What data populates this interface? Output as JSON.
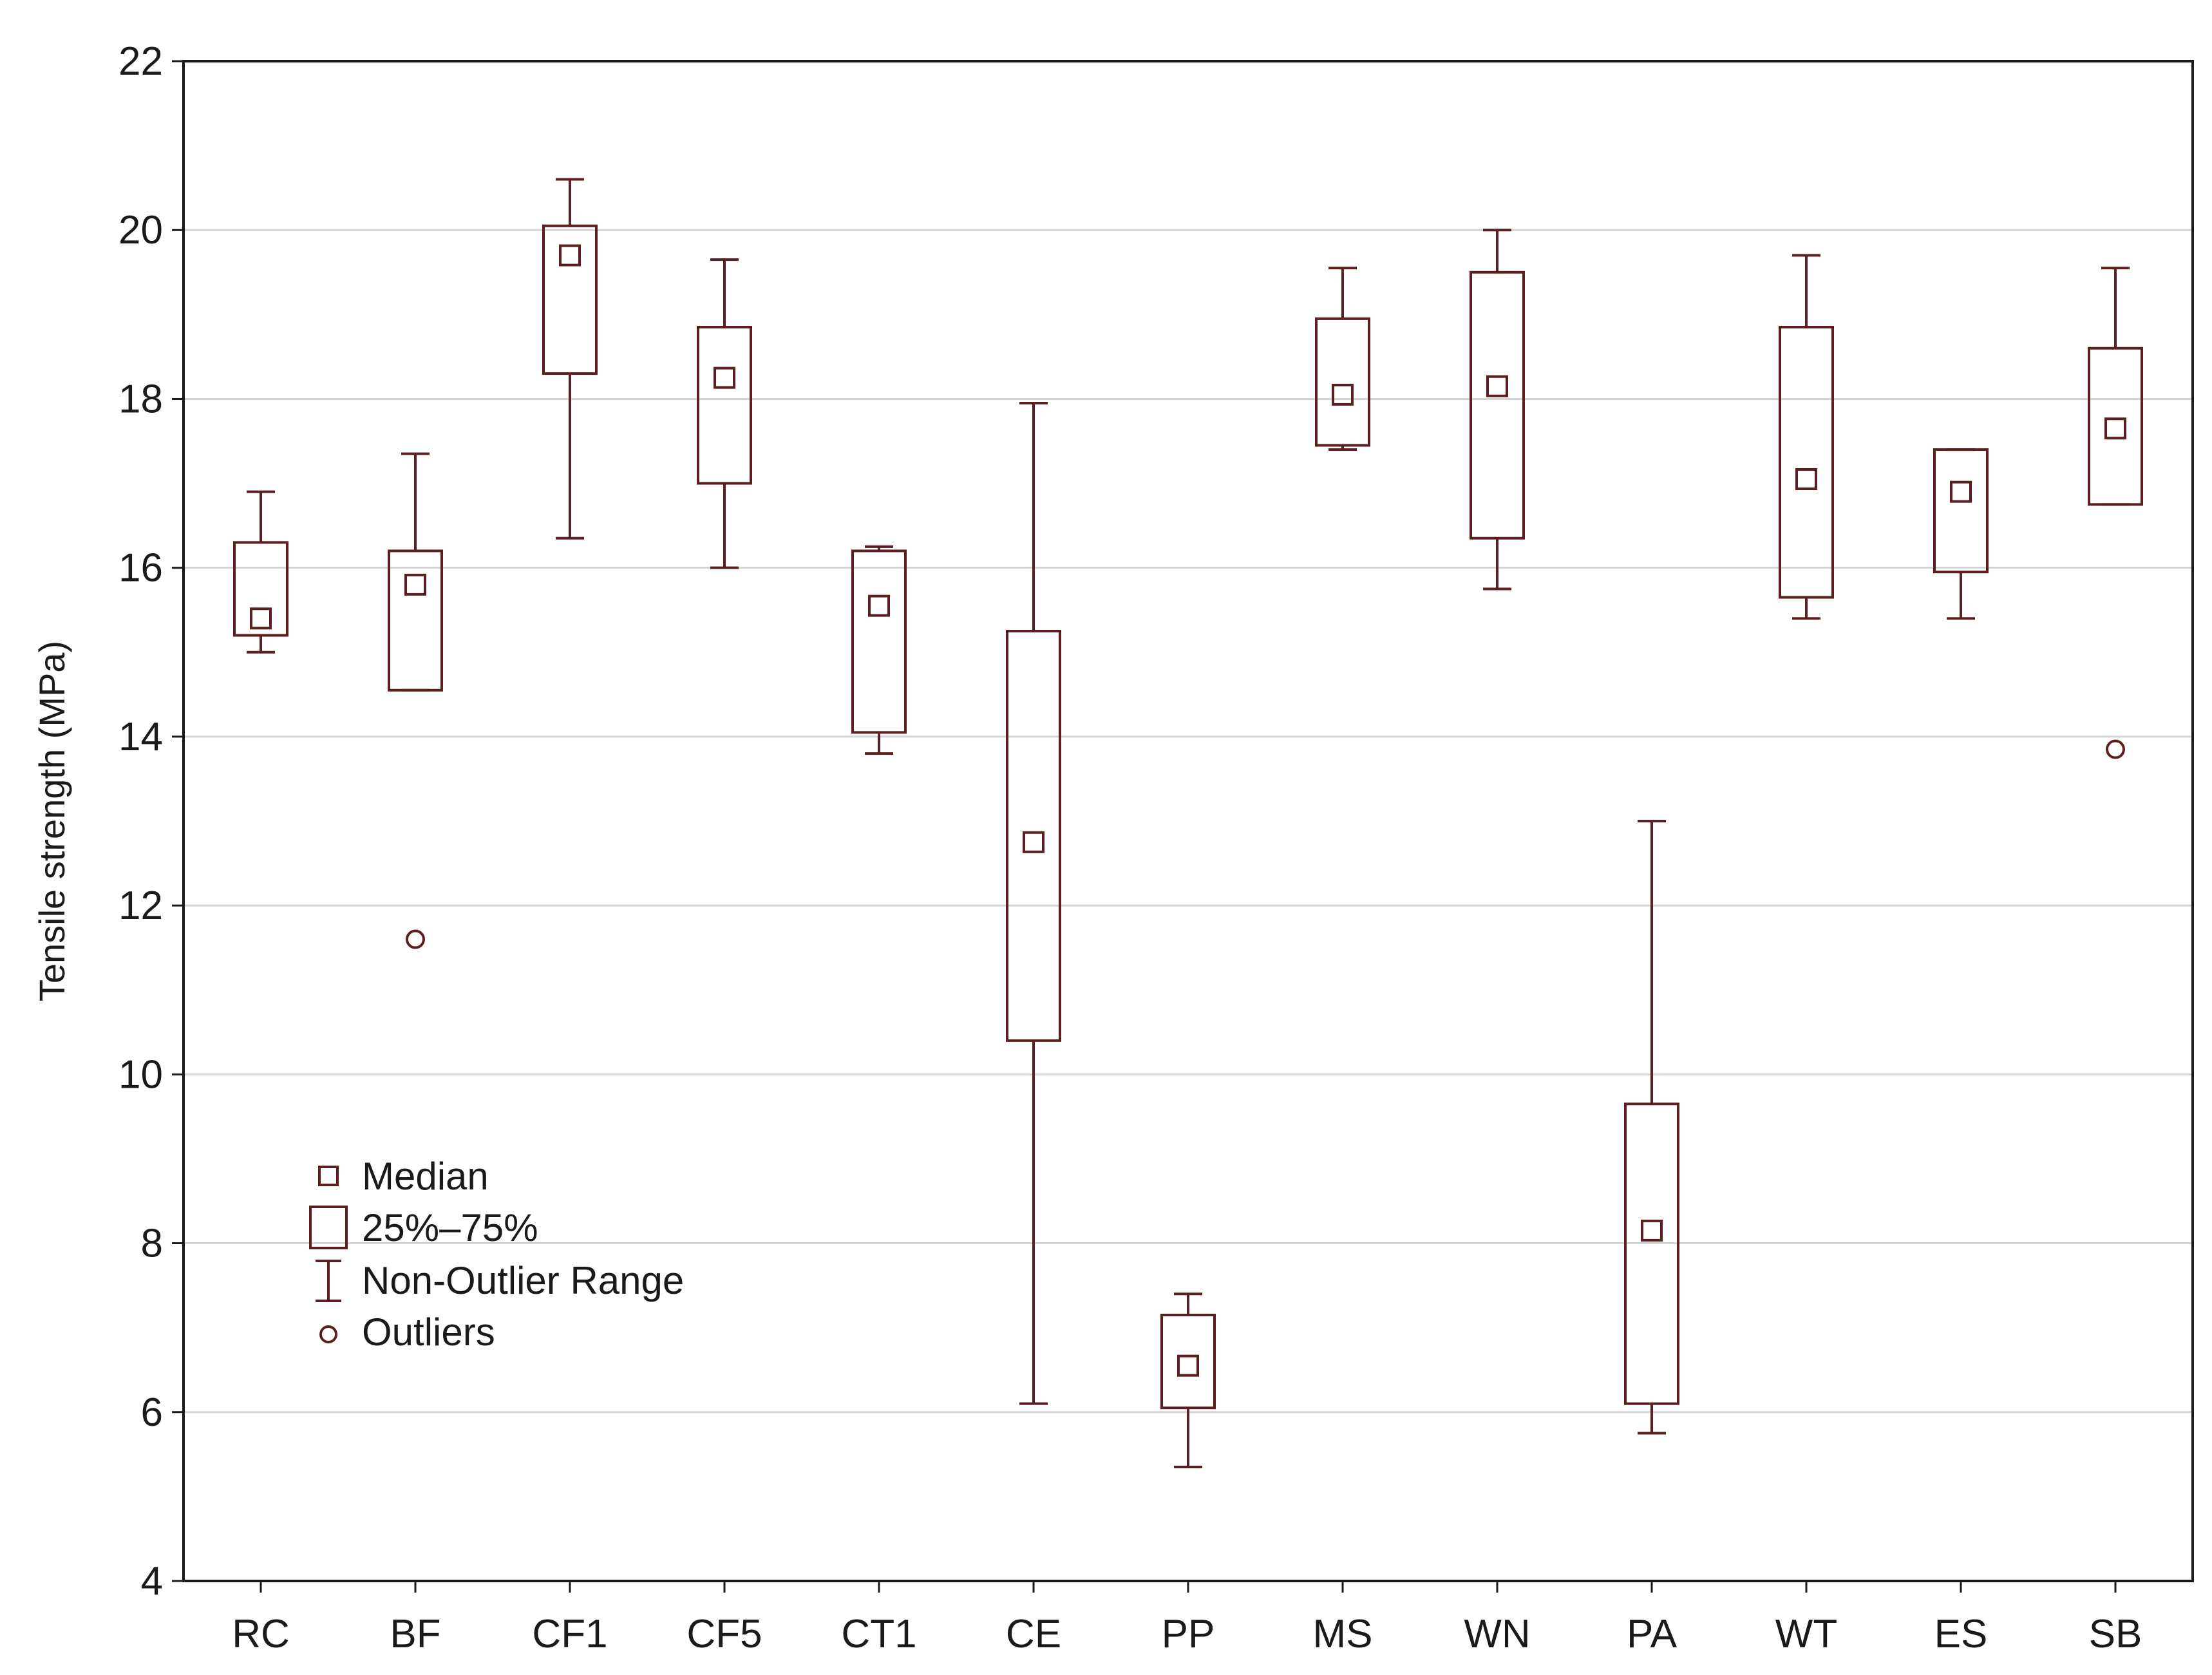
{
  "chart_data": {
    "type": "boxplot",
    "title": "",
    "xlabel": "",
    "ylabel": "Tensile strength (MPa)",
    "ylim": [
      4,
      22
    ],
    "yticks": [
      4,
      6,
      8,
      10,
      12,
      14,
      16,
      18,
      20,
      22
    ],
    "grid": true,
    "legend_position": "left-middle",
    "colors": {
      "mark": "#5c1f1f",
      "grid": "#d4d4d4",
      "axis": "#1a1a1a"
    },
    "legend": [
      {
        "symbol": "median",
        "label": "Median"
      },
      {
        "symbol": "box",
        "label": "25%–75%"
      },
      {
        "symbol": "whisker",
        "label": "Non-Outlier Range"
      },
      {
        "symbol": "outlier",
        "label": "Outliers"
      }
    ],
    "categories": [
      "RC",
      "BF",
      "CF1",
      "CF5",
      "CT1",
      "CE",
      "PP",
      "MS",
      "WN",
      "PA",
      "WT",
      "ES",
      "SB"
    ],
    "series": [
      {
        "name": "RC",
        "whisker_low": 15.0,
        "q1": 15.2,
        "median": 15.4,
        "q3": 16.3,
        "whisker_high": 16.9,
        "outliers": []
      },
      {
        "name": "BF",
        "whisker_low": 14.55,
        "q1": 14.55,
        "median": 15.8,
        "q3": 16.2,
        "whisker_high": 17.35,
        "outliers": [
          11.6
        ]
      },
      {
        "name": "CF1",
        "whisker_low": 16.35,
        "q1": 18.3,
        "median": 19.7,
        "q3": 20.05,
        "whisker_high": 20.6,
        "outliers": []
      },
      {
        "name": "CF5",
        "whisker_low": 16.0,
        "q1": 17.0,
        "median": 18.25,
        "q3": 18.85,
        "whisker_high": 19.65,
        "outliers": []
      },
      {
        "name": "CT1",
        "whisker_low": 13.8,
        "q1": 14.05,
        "median": 15.55,
        "q3": 16.2,
        "whisker_high": 16.25,
        "outliers": []
      },
      {
        "name": "CE",
        "whisker_low": 6.1,
        "q1": 10.4,
        "median": 12.75,
        "q3": 15.25,
        "whisker_high": 17.95,
        "outliers": []
      },
      {
        "name": "PP",
        "whisker_low": 5.35,
        "q1": 6.05,
        "median": 6.55,
        "q3": 7.15,
        "whisker_high": 7.4,
        "outliers": []
      },
      {
        "name": "MS",
        "whisker_low": 17.4,
        "q1": 17.45,
        "median": 18.05,
        "q3": 18.95,
        "whisker_high": 19.55,
        "outliers": []
      },
      {
        "name": "WN",
        "whisker_low": 15.75,
        "q1": 16.35,
        "median": 18.15,
        "q3": 19.5,
        "whisker_high": 20.0,
        "outliers": []
      },
      {
        "name": "PA",
        "whisker_low": 5.75,
        "q1": 6.1,
        "median": 8.15,
        "q3": 9.65,
        "whisker_high": 13.0,
        "outliers": []
      },
      {
        "name": "WT",
        "whisker_low": 15.4,
        "q1": 15.65,
        "median": 17.05,
        "q3": 18.85,
        "whisker_high": 19.7,
        "outliers": []
      },
      {
        "name": "ES",
        "whisker_low": 15.4,
        "q1": 15.95,
        "median": 16.9,
        "q3": 17.4,
        "whisker_high": 17.4,
        "outliers": []
      },
      {
        "name": "SB",
        "whisker_low": 16.75,
        "q1": 16.75,
        "median": 17.65,
        "q3": 18.6,
        "whisker_high": 19.55,
        "outliers": [
          13.85
        ]
      }
    ]
  }
}
